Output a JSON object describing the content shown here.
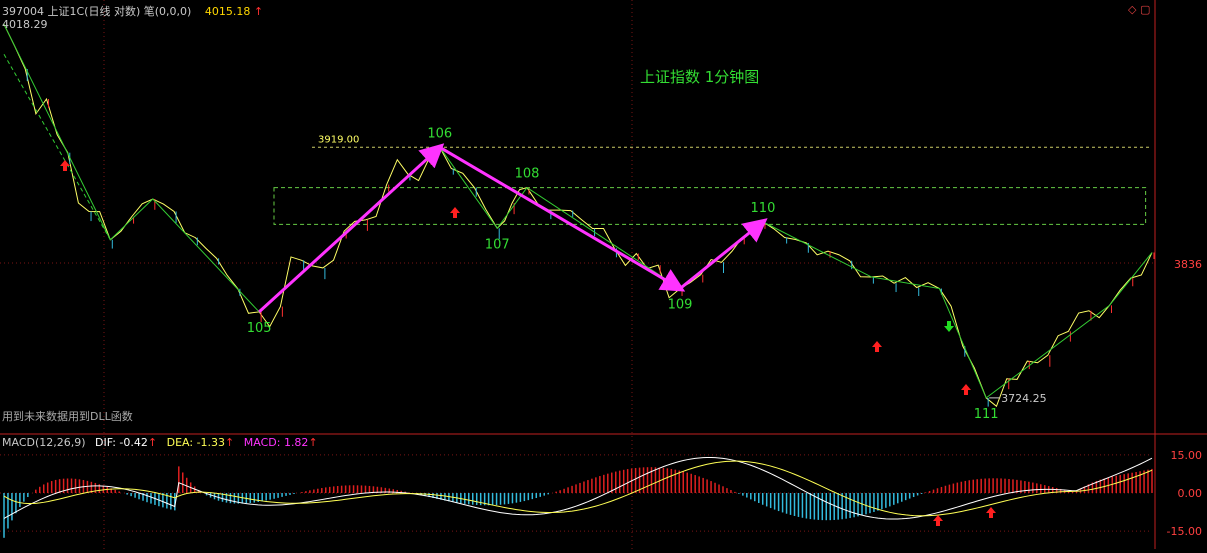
{
  "header": {
    "symbol": "397004 上证1C(日线 对数) 笔(0,0,0)",
    "last_price": "4015.18",
    "up_arrow": "↑",
    "corner_icons": "◇ ▢"
  },
  "chart_data": [
    {
      "type": "line",
      "title": "上证指数 1分钟图",
      "note": "用到未来数据用到DLL函数",
      "series_colors": {
        "price": "#ffff66",
        "bi": "#33cc33",
        "trend": "#ff33ff",
        "box": "#66cc44",
        "label": "#33dd33",
        "up_arrow": "#ff2020",
        "down_arrow": "#22dd22"
      },
      "price_labels": {
        "high_start": "4018.29",
        "resistance": "3919.00",
        "low": "3724.25",
        "right_axis": "3836"
      },
      "pivots": [
        {
          "label": "",
          "x": 0,
          "y": 4018.29
        },
        {
          "label": "",
          "x": 50,
          "y": 3846
        },
        {
          "label": "",
          "x": 70,
          "y": 3878
        },
        {
          "label": "105",
          "x": 120,
          "y": 3790
        },
        {
          "label": "106",
          "x": 205,
          "y": 3919
        },
        {
          "label": "107",
          "x": 232,
          "y": 3855
        },
        {
          "label": "108",
          "x": 246,
          "y": 3887
        },
        {
          "label": "109",
          "x": 318,
          "y": 3808
        },
        {
          "label": "110",
          "x": 357,
          "y": 3860
        },
        {
          "label": "",
          "x": 408,
          "y": 3817
        },
        {
          "label": "",
          "x": 440,
          "y": 3808
        },
        {
          "label": "111",
          "x": 462,
          "y": 3724.25
        },
        {
          "label": "",
          "x": 520,
          "y": 3795
        },
        {
          "label": "",
          "x": 540,
          "y": 3836
        }
      ],
      "box": {
        "x_start": 127,
        "x_end": 537,
        "y_low": 3858,
        "y_high": 3887
      },
      "x_range": [
        0,
        540
      ],
      "y_range": [
        3700,
        4030
      ]
    },
    {
      "type": "bar",
      "title": "MACD(12,26,9)",
      "labels": {
        "dif": "DIF: -0.42",
        "dea": "DEA: -1.33",
        "macd": "MACD: 1.82"
      },
      "ticks": [
        "15.00",
        "0.00",
        "-15.00"
      ],
      "y_range": [
        -22,
        22
      ],
      "colors": {
        "dif": "#ffffff",
        "dea": "#ffff55",
        "pos": "#e02020",
        "neg": "#33bbdd"
      }
    }
  ]
}
